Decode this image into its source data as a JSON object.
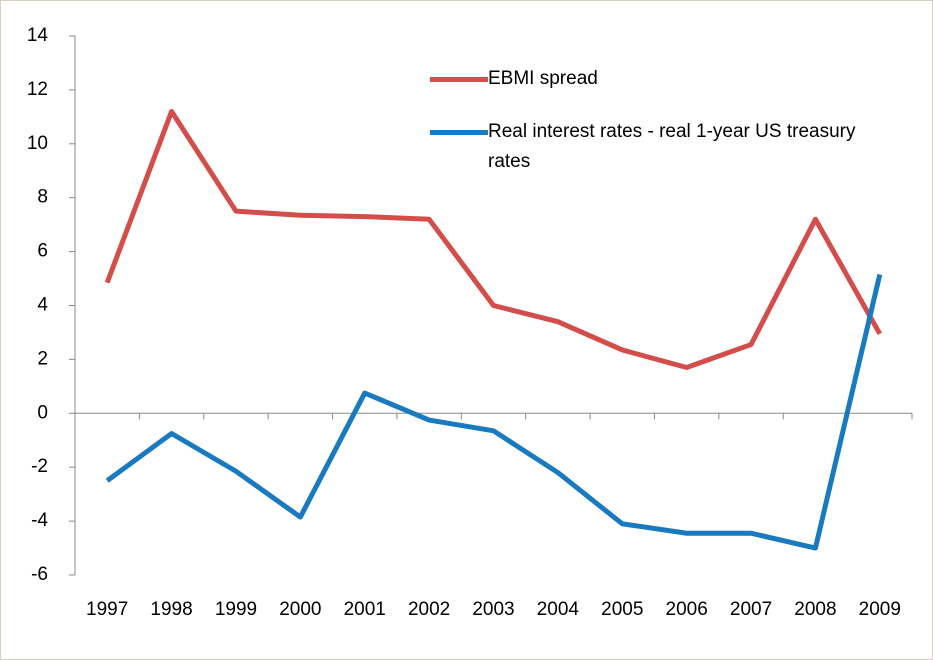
{
  "chart_data": {
    "type": "line",
    "categories": [
      "1997",
      "1998",
      "1999",
      "2000",
      "2001",
      "2002",
      "2003",
      "2004",
      "2005",
      "2006",
      "2007",
      "2008",
      "2009"
    ],
    "series": [
      {
        "name": "EBMI spread",
        "color": "#d34d4a",
        "values": [
          4.85,
          11.2,
          7.5,
          7.35,
          7.3,
          7.2,
          4.0,
          3.4,
          2.35,
          1.7,
          2.55,
          7.2,
          2.95
        ]
      },
      {
        "name": "Real interest rates - real 1-year US treasury rates",
        "color": "#1a7abf",
        "values": [
          -2.5,
          -0.75,
          -2.15,
          -3.85,
          0.75,
          -0.25,
          -0.65,
          -2.2,
          -4.1,
          -4.45,
          -4.45,
          -5.0,
          5.15
        ]
      }
    ],
    "ylim": [
      -6,
      14
    ],
    "yticks": [
      -6,
      -4,
      -2,
      0,
      2,
      4,
      6,
      8,
      10,
      12,
      14
    ],
    "grid": false,
    "legend": "top-right"
  }
}
